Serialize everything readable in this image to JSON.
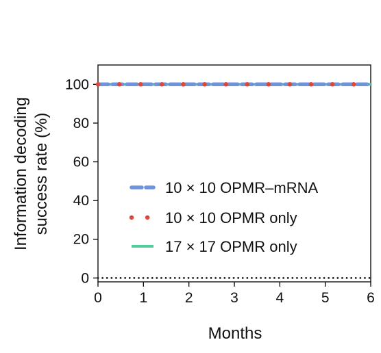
{
  "chart_data": {
    "type": "line",
    "title": "",
    "xlabel": "Months",
    "ylabel_lines": [
      "Information decoding",
      "success rate (%)"
    ],
    "xlim": [
      0,
      6
    ],
    "ylim": [
      -2,
      110
    ],
    "xticks": [
      0,
      1,
      2,
      3,
      4,
      5,
      6
    ],
    "yticks": [
      0,
      20,
      40,
      60,
      80,
      100
    ],
    "grid": false,
    "legend_position": "center-right",
    "series": [
      {
        "name": "10 × 10 OPMR–mRNA",
        "style": "dashed",
        "color": "#6f93dd",
        "x": [
          0,
          0.5,
          1,
          1.5,
          2,
          2.5,
          3,
          3.5,
          4,
          4.5,
          5,
          5.5,
          6
        ],
        "y": [
          100,
          100,
          100,
          100,
          100,
          100,
          100,
          100,
          100,
          100,
          100,
          100,
          100
        ]
      },
      {
        "name": "10 × 10 OPMR only",
        "style": "dotted",
        "color": "#e0483a",
        "x": [
          0,
          0.5,
          1,
          1.5,
          2,
          2.5,
          3,
          3.5,
          4,
          4.5,
          5,
          5.5,
          6
        ],
        "y": [
          100,
          100,
          100,
          100,
          100,
          100,
          100,
          100,
          100,
          100,
          100,
          100,
          100
        ]
      },
      {
        "name": "17 × 17 OPMR only",
        "style": "solid",
        "color": "#4fcf98",
        "x": [
          0,
          0.5,
          1,
          1.5,
          2,
          2.5,
          3,
          3.5,
          4,
          4.5,
          5,
          5.5,
          6
        ],
        "y": [
          100,
          100,
          100,
          100,
          100,
          100,
          100,
          100,
          100,
          100,
          100,
          100,
          100
        ]
      },
      {
        "name": "",
        "style": "dotted",
        "color": "#111111",
        "x": [
          0,
          6
        ],
        "y": [
          0,
          0
        ]
      }
    ]
  }
}
